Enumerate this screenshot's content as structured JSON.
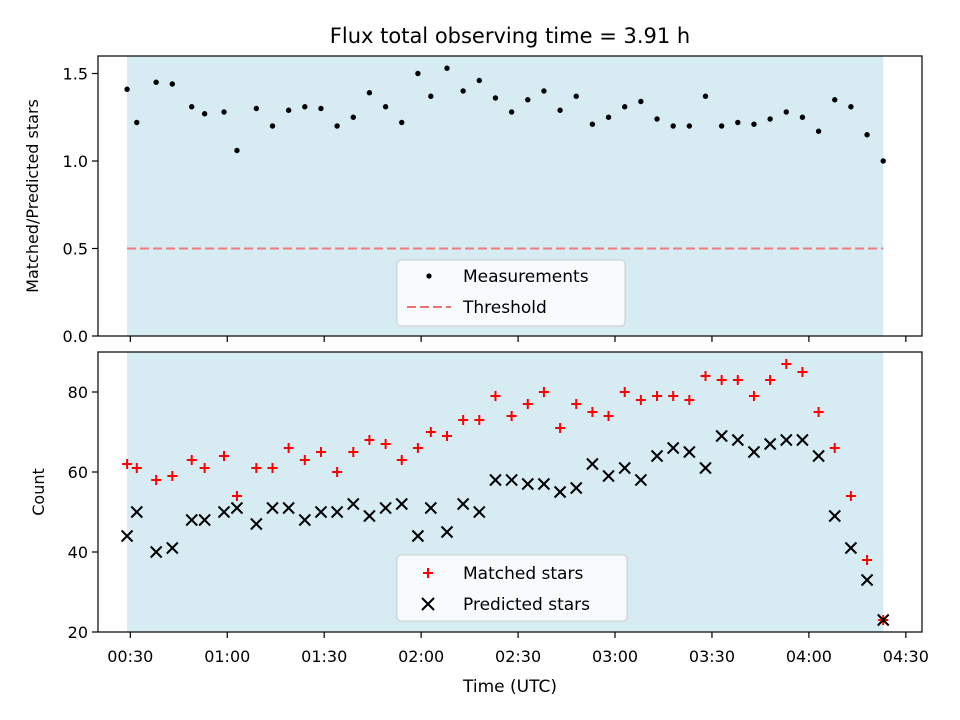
{
  "figure": {
    "title": "Flux total observing time = 3.91 h",
    "xlabel": "Time (UTC)",
    "x_ticks": [
      "00:30",
      "01:00",
      "01:30",
      "02:00",
      "02:30",
      "03:00",
      "03:30",
      "04:00",
      "04:30"
    ],
    "shaded_span": [
      "00:29",
      "04:23"
    ],
    "shade_color": "#add8e6"
  },
  "chart_data": [
    {
      "type": "scatter",
      "ylabel": "Matched/Predicted stars",
      "ylim": [
        0,
        1.6
      ],
      "y_ticks": [
        "0.0",
        "0.5",
        "1.0",
        "1.5"
      ],
      "legend_position": "bottom-center",
      "threshold": {
        "name": "Threshold",
        "value": 0.5,
        "color": "#f07070"
      },
      "series": [
        {
          "name": "Measurements",
          "color": "#000000",
          "x": [
            "00:29",
            "00:32",
            "00:38",
            "00:43",
            "00:49",
            "00:53",
            "00:59",
            "01:03",
            "01:09",
            "01:14",
            "01:19",
            "01:24",
            "01:29",
            "01:34",
            "01:39",
            "01:44",
            "01:49",
            "01:54",
            "01:59",
            "02:03",
            "02:08",
            "02:13",
            "02:18",
            "02:23",
            "02:28",
            "02:33",
            "02:38",
            "02:43",
            "02:48",
            "02:53",
            "02:58",
            "03:03",
            "03:08",
            "03:13",
            "03:18",
            "03:23",
            "03:28",
            "03:33",
            "03:38",
            "03:43",
            "03:48",
            "03:53",
            "03:58",
            "04:03",
            "04:08",
            "04:13",
            "04:18",
            "04:23"
          ],
          "values": [
            1.41,
            1.22,
            1.45,
            1.44,
            1.31,
            1.27,
            1.28,
            1.06,
            1.3,
            1.2,
            1.29,
            1.31,
            1.3,
            1.2,
            1.25,
            1.39,
            1.31,
            1.22,
            1.5,
            1.37,
            1.53,
            1.4,
            1.46,
            1.36,
            1.28,
            1.35,
            1.4,
            1.29,
            1.37,
            1.21,
            1.25,
            1.31,
            1.34,
            1.24,
            1.2,
            1.2,
            1.37,
            1.2,
            1.22,
            1.21,
            1.24,
            1.28,
            1.25,
            1.17,
            1.35,
            1.31,
            1.15,
            1.0
          ]
        }
      ]
    },
    {
      "type": "scatter",
      "ylabel": "Count",
      "ylim": [
        20,
        90
      ],
      "y_ticks": [
        "20",
        "40",
        "60",
        "80"
      ],
      "legend_position": "bottom-center",
      "series": [
        {
          "name": "Matched stars",
          "marker": "plus",
          "color": "#ff0000",
          "x": [
            "00:29",
            "00:32",
            "00:38",
            "00:43",
            "00:49",
            "00:53",
            "00:59",
            "01:03",
            "01:09",
            "01:14",
            "01:19",
            "01:24",
            "01:29",
            "01:34",
            "01:39",
            "01:44",
            "01:49",
            "01:54",
            "01:59",
            "02:03",
            "02:08",
            "02:13",
            "02:18",
            "02:23",
            "02:28",
            "02:33",
            "02:38",
            "02:43",
            "02:48",
            "02:53",
            "02:58",
            "03:03",
            "03:08",
            "03:13",
            "03:18",
            "03:23",
            "03:28",
            "03:33",
            "03:38",
            "03:43",
            "03:48",
            "03:53",
            "03:58",
            "04:03",
            "04:08",
            "04:13",
            "04:18",
            "04:23"
          ],
          "values": [
            62,
            61,
            58,
            59,
            63,
            61,
            64,
            54,
            61,
            61,
            66,
            63,
            65,
            60,
            65,
            68,
            67,
            63,
            66,
            70,
            69,
            73,
            73,
            79,
            74,
            77,
            80,
            71,
            77,
            75,
            74,
            80,
            78,
            79,
            79,
            78,
            84,
            83,
            83,
            79,
            83,
            87,
            85,
            75,
            66,
            54,
            38,
            23
          ]
        },
        {
          "name": "Predicted stars",
          "marker": "x",
          "color": "#000000",
          "x": [
            "00:29",
            "00:32",
            "00:38",
            "00:43",
            "00:49",
            "00:53",
            "00:59",
            "01:03",
            "01:09",
            "01:14",
            "01:19",
            "01:24",
            "01:29",
            "01:34",
            "01:39",
            "01:44",
            "01:49",
            "01:54",
            "01:59",
            "02:03",
            "02:08",
            "02:13",
            "02:18",
            "02:23",
            "02:28",
            "02:33",
            "02:38",
            "02:43",
            "02:48",
            "02:53",
            "02:58",
            "03:03",
            "03:08",
            "03:13",
            "03:18",
            "03:23",
            "03:28",
            "03:33",
            "03:38",
            "03:43",
            "03:48",
            "03:53",
            "03:58",
            "04:03",
            "04:08",
            "04:13",
            "04:18",
            "04:23"
          ],
          "values": [
            44,
            50,
            40,
            41,
            48,
            48,
            50,
            51,
            47,
            51,
            51,
            48,
            50,
            50,
            52,
            49,
            51,
            52,
            44,
            51,
            45,
            52,
            50,
            58,
            58,
            57,
            57,
            55,
            56,
            62,
            59,
            61,
            58,
            64,
            66,
            65,
            61,
            69,
            68,
            65,
            67,
            68,
            68,
            64,
            49,
            41,
            33,
            23
          ]
        }
      ]
    }
  ]
}
